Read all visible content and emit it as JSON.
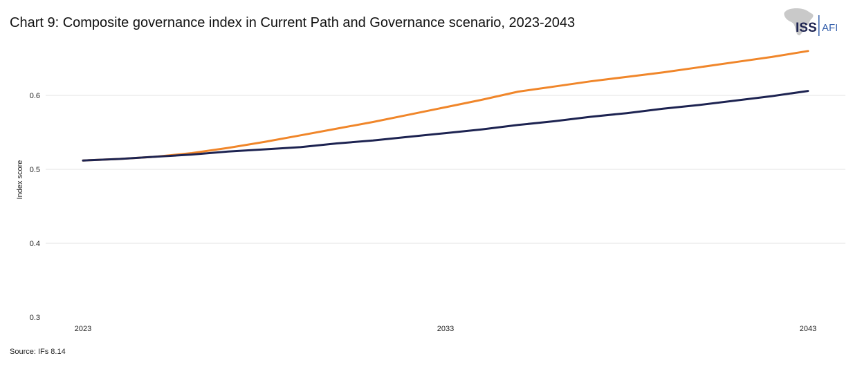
{
  "chart_data": {
    "type": "line",
    "title": "Chart 9: Composite governance index in Current Path and Governance scenario, 2023-2043",
    "xlabel": "",
    "ylabel": "Index score",
    "ylim": [
      0.3,
      0.7
    ],
    "yticks": [
      0.3,
      0.4,
      0.5,
      0.6
    ],
    "ytick_labels": [
      "0.3",
      "0.4",
      "0.5",
      "0.6"
    ],
    "xticks": [
      2023,
      2033,
      2043
    ],
    "xtick_labels": [
      "2023",
      "2033",
      "2043"
    ],
    "grid": true,
    "x": [
      2023,
      2024,
      2025,
      2026,
      2027,
      2028,
      2029,
      2030,
      2031,
      2032,
      2033,
      2034,
      2035,
      2036,
      2037,
      2038,
      2039,
      2040,
      2041,
      2042,
      2043
    ],
    "series": [
      {
        "name": "Governance scenario",
        "color": "#F0862A",
        "values": [
          0.512,
          0.514,
          0.517,
          0.522,
          0.529,
          0.537,
          0.546,
          0.555,
          0.564,
          0.574,
          0.584,
          0.594,
          0.605,
          0.612,
          0.619,
          0.625,
          0.631,
          0.638,
          0.645,
          0.652,
          0.66
        ]
      },
      {
        "name": "Current Path",
        "color": "#1D2351",
        "values": [
          0.512,
          0.514,
          0.517,
          0.52,
          0.524,
          0.527,
          0.53,
          0.535,
          0.539,
          0.544,
          0.549,
          0.554,
          0.56,
          0.565,
          0.571,
          0.576,
          0.582,
          0.587,
          0.593,
          0.599,
          0.606
        ]
      }
    ]
  },
  "logo": {
    "primary": "ISS",
    "secondary": "AFI",
    "primary_color": "#1D2351",
    "secondary_color": "#2E5AA8"
  },
  "footer": {
    "source": "Source: IFs 8.14"
  }
}
